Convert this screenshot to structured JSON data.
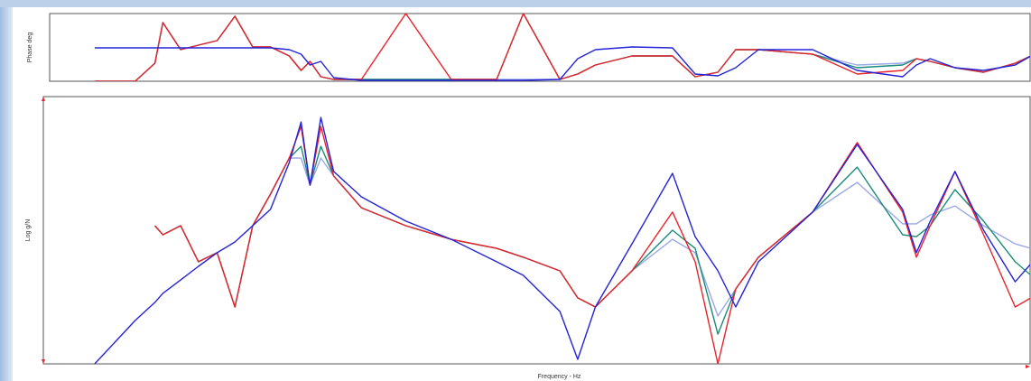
{
  "chart_data": [
    {
      "type": "line",
      "ylabel": "Phase deg",
      "x": [
        5.2,
        9.3,
        11.3,
        12.1,
        13.9,
        15.7,
        17.6,
        19.4,
        21.2,
        23.0,
        24.9,
        26.1,
        27.0,
        28.1,
        29.4,
        32.2,
        36.7,
        41.3,
        45.9,
        48.6,
        52.3,
        54.1,
        55.9,
        59.6,
        63.7,
        66.0,
        68.3,
        70.1,
        72.4,
        77.9,
        82.4,
        87.0,
        88.4,
        89.8,
        92.3,
        95.2,
        98.4,
        100
      ],
      "xlim": [
        0,
        100
      ],
      "ylim": [
        0,
        100
      ],
      "series": [
        {
          "color": "#9aa8e8",
          "values": [
            0,
            0,
            26.7,
            86.7,
            46.7,
            53.3,
            60.0,
            96.0,
            50.7,
            50.7,
            37.3,
            16.0,
            29.3,
            6.7,
            2.7,
            2.7,
            2.7,
            2.7,
            2.7,
            2.7,
            2.7,
            10.7,
            24.0,
            37.3,
            37.3,
            6.7,
            13.3,
            46.7,
            46.7,
            40.0,
            24.0,
            26.7,
            33.3,
            29.3,
            20.0,
            13.3,
            26.7,
            37.3
          ]
        },
        {
          "color": "#1a8a78",
          "values": [
            0,
            0,
            26.7,
            86.7,
            46.7,
            53.3,
            60.0,
            96.0,
            50.7,
            50.7,
            37.3,
            16.0,
            29.3,
            6.7,
            2.7,
            2.7,
            2.7,
            2.7,
            2.7,
            100,
            2.7,
            10.7,
            24.0,
            37.3,
            37.3,
            6.7,
            13.3,
            46.7,
            46.7,
            40.0,
            20.0,
            24.0,
            33.3,
            29.3,
            20.0,
            13.3,
            26.7,
            37.3
          ]
        },
        {
          "color": "#e8232a",
          "values": [
            0,
            0,
            26.7,
            86.7,
            46.7,
            53.3,
            60.0,
            96.0,
            50.7,
            50.7,
            37.3,
            16.0,
            29.3,
            6.7,
            2.7,
            2.7,
            100,
            2.7,
            2.7,
            100,
            2.7,
            10.7,
            24.0,
            37.3,
            37.3,
            6.7,
            13.3,
            46.7,
            46.7,
            40.0,
            10.7,
            16.0,
            33.3,
            29.3,
            20.0,
            13.3,
            26.7,
            37.3
          ]
        },
        {
          "color": "#2323d8",
          "values": [
            49.3,
            49.3,
            49.3,
            49.3,
            49.3,
            49.3,
            49.3,
            49.3,
            49.3,
            49.3,
            46.7,
            40.0,
            24.0,
            29.3,
            5.3,
            1.3,
            1.3,
            1.3,
            1.3,
            1.3,
            2.7,
            33.3,
            46.7,
            50.7,
            49.3,
            10.7,
            8.0,
            20.0,
            46.7,
            46.7,
            16.0,
            6.7,
            24.0,
            33.3,
            20.0,
            16.0,
            24.0,
            37.3
          ]
        }
      ]
    },
    {
      "type": "line",
      "ylabel": "Log g/N",
      "xlabel": "Frequency - Hz",
      "x": [
        5.2,
        9.3,
        11.3,
        12.1,
        13.9,
        15.7,
        17.6,
        19.4,
        21.2,
        23.0,
        24.9,
        26.1,
        27.0,
        28.1,
        29.4,
        32.2,
        36.7,
        41.3,
        45.9,
        48.6,
        52.3,
        54.1,
        55.9,
        59.6,
        63.7,
        66.0,
        68.3,
        70.1,
        72.4,
        77.9,
        82.4,
        87.0,
        88.4,
        89.8,
        92.3,
        95.2,
        98.4,
        100
      ],
      "xlim": [
        0,
        100
      ],
      "ylim": [
        0,
        100
      ],
      "series": [
        {
          "color": "#9aa8e8",
          "values": [
            null,
            null,
            51.7,
            48.3,
            51.7,
            38.2,
            41.6,
            21.3,
            51.7,
            63.5,
            77.0,
            77.0,
            66.9,
            77.0,
            70.3,
            58.4,
            51.7,
            46.6,
            43.2,
            39.9,
            34.8,
            24.7,
            21.3,
            34.8,
            46.6,
            41.6,
            17.9,
            28.0,
            39.9,
            56.8,
            67.9,
            52.4,
            52.4,
            55.7,
            59.1,
            51.7,
            44.9,
            43.2
          ]
        },
        {
          "color": "#1a8a78",
          "values": [
            null,
            null,
            51.7,
            48.3,
            51.7,
            38.2,
            41.6,
            21.3,
            51.7,
            63.5,
            77.0,
            81.4,
            66.9,
            81.4,
            70.3,
            58.4,
            51.7,
            46.6,
            43.2,
            39.9,
            34.8,
            24.7,
            21.3,
            34.8,
            50.0,
            43.2,
            11.1,
            28.0,
            39.9,
            56.8,
            73.6,
            48.3,
            47.6,
            51.7,
            65.2,
            53.4,
            38.2,
            33.1
          ]
        },
        {
          "color": "#e8232a",
          "values": [
            null,
            null,
            51.7,
            48.3,
            51.7,
            38.2,
            41.6,
            21.3,
            51.7,
            63.5,
            77.0,
            88.9,
            66.9,
            88.9,
            70.3,
            58.4,
            51.7,
            46.6,
            43.2,
            39.9,
            34.8,
            24.7,
            21.3,
            34.8,
            56.8,
            38.2,
            0,
            28.0,
            39.9,
            56.8,
            82.8,
            56.8,
            39.9,
            51.7,
            72.0,
            48.3,
            21.3,
            24.7
          ]
        },
        {
          "color": "#2323d8",
          "values": [
            0,
            16.2,
            23.0,
            26.4,
            31.4,
            36.5,
            41.6,
            45.6,
            51.7,
            57.8,
            75.3,
            90.5,
            66.9,
            92.2,
            72.0,
            62.5,
            53.4,
            46.6,
            38.2,
            33.1,
            19.6,
            1.7,
            21.3,
            44.9,
            71.3,
            47.6,
            34.8,
            21.3,
            38.2,
            56.8,
            82.1,
            57.8,
            41.6,
            53.4,
            72.0,
            50.0,
            30.7,
            37.5
          ]
        }
      ]
    }
  ]
}
